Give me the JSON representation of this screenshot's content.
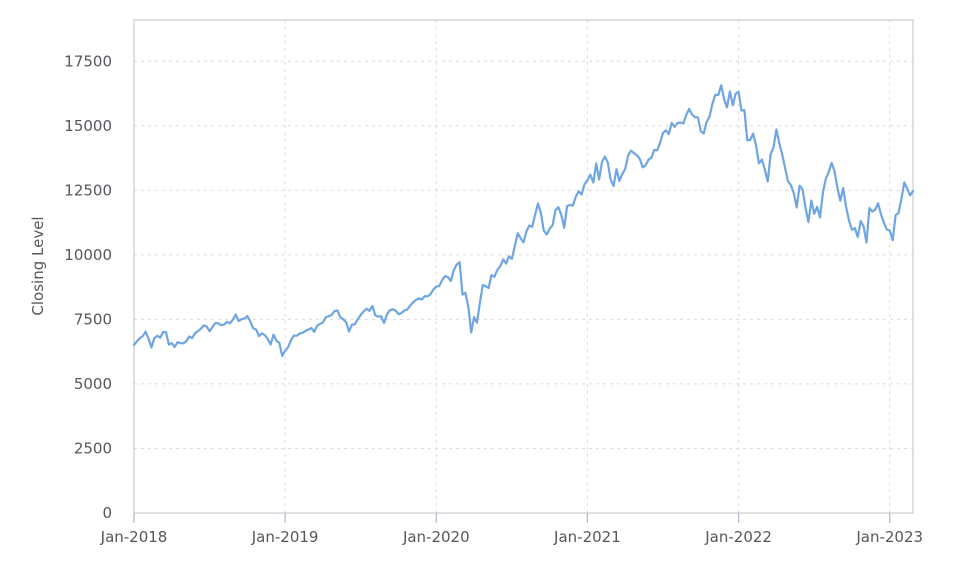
{
  "chart_data": {
    "type": "line",
    "title": "",
    "xlabel": "",
    "ylabel": "Closing Level",
    "legend_position": "none",
    "grid": "dashed",
    "x_tick_labels": [
      "Jan-2018",
      "Jan-2019",
      "Jan-2020",
      "Jan-2021",
      "Jan-2022",
      "Jan-2023"
    ],
    "x_tick_week_index": [
      0,
      52,
      104,
      156,
      208,
      260
    ],
    "x_total_weeks": 268,
    "y_tick_labels": [
      "0",
      "2500",
      "5000",
      "7500",
      "10000",
      "12500",
      "15000",
      "17500"
    ],
    "y_ticks": [
      0,
      2500,
      5000,
      7500,
      10000,
      12500,
      15000,
      17500
    ],
    "ylim": [
      0,
      19100
    ],
    "series": [
      {
        "name": "Closing Level",
        "color": "#6fa5e2",
        "week_values": [
          6511,
          6653,
          6772,
          6849,
          7023,
          6761,
          6412,
          6771,
          6866,
          6792,
          7012,
          7005,
          6524,
          6581,
          6434,
          6622,
          6577,
          6576,
          6657,
          6838,
          6779,
          6960,
          7051,
          7138,
          7270,
          7220,
          7041,
          7206,
          7361,
          7350,
          7276,
          7300,
          7408,
          7350,
          7486,
          7691,
          7434,
          7510,
          7531,
          7627,
          7422,
          7157,
          7107,
          6852,
          6963,
          6891,
          6741,
          6523,
          6906,
          6670,
          6594,
          6085,
          6285,
          6423,
          6693,
          6871,
          6870,
          6954,
          6982,
          7055,
          7104,
          7169,
          7016,
          7249,
          7327,
          7378,
          7580,
          7628,
          7680,
          7826,
          7845,
          7577,
          7504,
          7387,
          7031,
          7301,
          7315,
          7507,
          7671,
          7806,
          7911,
          7834,
          8017,
          7660,
          7610,
          7624,
          7362,
          7691,
          7852,
          7896,
          7843,
          7702,
          7743,
          7847,
          7880,
          8029,
          8161,
          8251,
          8317,
          8272,
          8404,
          8397,
          8475,
          8664,
          8771,
          8793,
          9021,
          9173,
          9141,
          8991,
          9401,
          9623,
          9718,
          8461,
          8530,
          7996,
          6994,
          7588,
          7373,
          8153,
          8832,
          8787,
          8718,
          9220,
          9152,
          9413,
          9556,
          9824,
          9663,
          9946,
          9849,
          10342,
          10836,
          10645,
          10483,
          10906,
          11139,
          11087,
          11555,
          11996,
          11622,
          10937,
          10793,
          11018,
          11151,
          11726,
          11852,
          11548,
          11052,
          11890,
          11937,
          11906,
          12258,
          12464,
          12340,
          12738,
          12888,
          13106,
          12804,
          13543,
          12925,
          13603,
          13807,
          13580,
          12909,
          12669,
          13320,
          12867,
          13138,
          13330,
          13845,
          14041,
          13941,
          13860,
          13719,
          13393,
          13471,
          13686,
          13770,
          14069,
          14050,
          14345,
          14727,
          14826,
          14681,
          15112,
          14960,
          15109,
          15130,
          15092,
          15432,
          15652,
          15440,
          15334,
          15330,
          14792,
          14702,
          15147,
          15355,
          15850,
          16200,
          16199,
          16573,
          16026,
          15712,
          16332,
          15801,
          16246,
          16320,
          15592,
          15611,
          14438,
          14454,
          14694,
          14253,
          13548,
          13694,
          13313,
          12844,
          13893,
          14169,
          14861,
          14328,
          13893,
          13357,
          12855,
          12694,
          12388,
          11836,
          12681,
          12549,
          11833,
          11265,
          12106,
          11586,
          11864,
          11452,
          12397,
          12948,
          13208,
          13566,
          13243,
          12606,
          12098,
          12588,
          11861,
          11311,
          10971,
          11039,
          10692,
          11310,
          11102,
          10475,
          11817,
          11677,
          11756,
          11994,
          11563,
          11244,
          10985,
          10940,
          10569,
          11541,
          11619,
          12166,
          12803,
          12573,
          12304,
          12470
        ]
      }
    ],
    "colors": {
      "line": "#6fa5e2",
      "gridline": "#dbdbde",
      "plot_border": "#c7cad2",
      "tick_mark": "#b3bccb",
      "label_text": "#54575c",
      "background": "#ffffff"
    }
  }
}
